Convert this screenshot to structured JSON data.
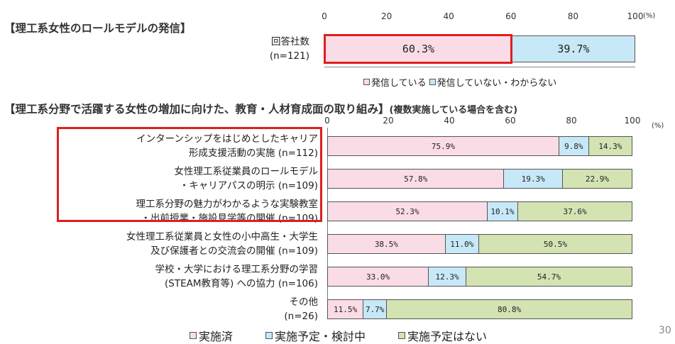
{
  "page_number": "30",
  "chart1": {
    "title": "【理工系女性のロールモデルの発信】",
    "ticks": [
      "0",
      "20",
      "40",
      "60",
      "80",
      "100"
    ],
    "unit": "(%)",
    "row_label_lines": [
      "回答社数",
      "(n=121)"
    ],
    "value_labels": [
      "60.3%",
      "39.7%"
    ],
    "legend": [
      "発信している",
      "発信していない・わからない"
    ]
  },
  "chart2": {
    "title": "【理工系分野で活躍する女性の増加に向けた、教育・人材育成面の取り組み】",
    "title_note": "(複数実施している場合を含む)",
    "ticks": [
      "0",
      "20",
      "40",
      "60",
      "80",
      "100"
    ],
    "unit": "(%)",
    "rows": [
      {
        "line1": "インターンシップをはじめとしたキャリア",
        "line2": "形成支援活動の実施 (n=112)",
        "labels": [
          "75.9%",
          "9.8%",
          "14.3%"
        ]
      },
      {
        "line1": "女性理工系従業員のロールモデル",
        "line2": "・キャリアパスの明示 (n=109)",
        "labels": [
          "57.8%",
          "19.3%",
          "22.9%"
        ]
      },
      {
        "line1": "理工系分野の魅力がわかるような実験教室",
        "line2": "・出前授業・施設見学等の開催 (n=109)",
        "labels": [
          "52.3%",
          "10.1%",
          "37.6%"
        ]
      },
      {
        "line1": "女性理工系従業員と女性の小中高生・大学生",
        "line2": "及び保護者との交流会の開催 (n=109)",
        "labels": [
          "38.5%",
          "11.0%",
          "50.5%"
        ]
      },
      {
        "line1": "学校・大学における理工系分野の学習",
        "line2": "(STEAM教育等) への協力 (n=106)",
        "labels": [
          "33.0%",
          "12.3%",
          "54.7%"
        ]
      },
      {
        "line1": "その他",
        "line2": "(n=26)",
        "labels": [
          "11.5%",
          "7.7%",
          "80.8%"
        ]
      }
    ],
    "legend": [
      "実施済",
      "実施予定・検討中",
      "実施予定はない"
    ]
  },
  "chart_data": [
    {
      "type": "bar",
      "orientation": "horizontal",
      "stacked": true,
      "title": "【理工系女性のロールモデルの発信】",
      "categories": [
        "回答社数 (n=121)"
      ],
      "series": [
        {
          "name": "発信している",
          "values": [
            60.3
          ],
          "color": "#fadce6"
        },
        {
          "name": "発信していない・わからない",
          "values": [
            39.7
          ],
          "color": "#c7e8f7"
        }
      ],
      "xlim": [
        0,
        100
      ],
      "xticks": [
        0,
        20,
        40,
        60,
        80,
        100
      ],
      "unit": "(%)",
      "legend": "bottom"
    },
    {
      "type": "bar",
      "orientation": "horizontal",
      "stacked": true,
      "title": "【理工系分野で活躍する女性の増加に向けた、教育・人材育成面の取り組み】(複数実施している場合を含む)",
      "categories": [
        "インターンシップをはじめとしたキャリア形成支援活動の実施 (n=112)",
        "女性理工系従業員のロールモデル・キャリアパスの明示 (n=109)",
        "理工系分野の魅力がわかるような実験教室・出前授業・施設見学等の開催 (n=109)",
        "女性理工系従業員と女性の小中高生・大学生及び保護者との交流会の開催 (n=109)",
        "学校・大学における理工系分野の学習 (STEAM教育等) への協力 (n=106)",
        "その他 (n=26)"
      ],
      "series": [
        {
          "name": "実施済",
          "values": [
            75.9,
            57.8,
            52.3,
            38.5,
            33.0,
            11.5
          ],
          "color": "#fadce6"
        },
        {
          "name": "実施予定・検討中",
          "values": [
            9.8,
            19.3,
            10.1,
            11.0,
            12.3,
            7.7
          ],
          "color": "#c7e8f7"
        },
        {
          "name": "実施予定はない",
          "values": [
            14.3,
            22.9,
            37.6,
            50.5,
            54.7,
            80.8
          ],
          "color": "#d3e3b2"
        }
      ],
      "xlim": [
        0,
        100
      ],
      "xticks": [
        0,
        20,
        40,
        60,
        80,
        100
      ],
      "unit": "(%)",
      "legend": "bottom"
    }
  ]
}
